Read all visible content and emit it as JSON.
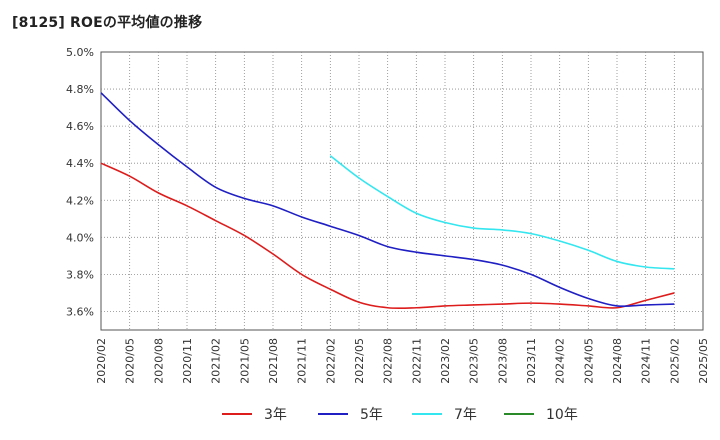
{
  "chart_data": {
    "type": "line",
    "title": "[8125]  ROEの平均値の推移",
    "xlabel": "",
    "ylabel": "",
    "ylim": [
      3.5,
      5.0
    ],
    "y_ticks": [
      "3.6%",
      "3.8%",
      "4.0%",
      "4.2%",
      "4.4%",
      "4.6%",
      "4.8%",
      "5.0%"
    ],
    "y_tick_values": [
      3.6,
      3.8,
      4.0,
      4.2,
      4.4,
      4.6,
      4.8,
      5.0
    ],
    "categories": [
      "2020/02",
      "2020/05",
      "2020/08",
      "2020/11",
      "2021/02",
      "2021/05",
      "2021/08",
      "2021/11",
      "2022/02",
      "2022/05",
      "2022/08",
      "2022/11",
      "2023/02",
      "2023/05",
      "2023/08",
      "2023/11",
      "2024/02",
      "2024/05",
      "2024/08",
      "2024/11",
      "2025/02",
      "2025/05"
    ],
    "grid": true,
    "legend_position": "bottom",
    "series": [
      {
        "name": "3年",
        "color": "#dd1c1c",
        "values": [
          4.4,
          4.33,
          4.24,
          4.17,
          4.09,
          4.01,
          3.91,
          3.8,
          3.72,
          3.65,
          3.62,
          3.62,
          3.63,
          3.635,
          3.64,
          3.645,
          3.64,
          3.63,
          3.62,
          3.66,
          3.7,
          null
        ]
      },
      {
        "name": "5年",
        "color": "#1f1fc4",
        "values": [
          4.78,
          4.63,
          4.5,
          4.38,
          4.27,
          4.21,
          4.17,
          4.11,
          4.06,
          4.01,
          3.95,
          3.92,
          3.9,
          3.88,
          3.85,
          3.8,
          3.73,
          3.67,
          3.63,
          3.635,
          3.64,
          null
        ]
      },
      {
        "name": "7年",
        "color": "#33e6ef",
        "values": [
          null,
          null,
          null,
          null,
          null,
          null,
          null,
          null,
          4.44,
          4.32,
          4.22,
          4.13,
          4.08,
          4.05,
          4.04,
          4.02,
          3.98,
          3.93,
          3.87,
          3.84,
          3.83,
          null
        ]
      },
      {
        "name": "10年",
        "color": "#2a8a2a",
        "values": [
          null,
          null,
          null,
          null,
          null,
          null,
          null,
          null,
          null,
          null,
          null,
          null,
          null,
          null,
          null,
          null,
          null,
          null,
          null,
          null,
          null,
          null
        ]
      }
    ]
  }
}
